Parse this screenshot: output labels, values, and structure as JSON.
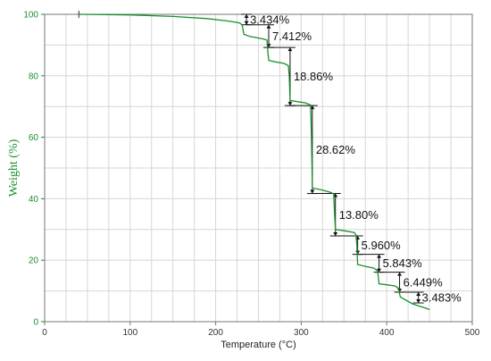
{
  "colors": {
    "curve": "#1a8f2e",
    "y_axis": "#1a8f2e",
    "annotation": "#111111",
    "grid": "#d6d6d6"
  },
  "chart_data": {
    "type": "line",
    "xlabel": "Temperature (°C)",
    "ylabel": "Weight (%)",
    "xlim": [
      0,
      500
    ],
    "ylim": [
      0,
      100
    ],
    "x_ticks": [
      "0",
      "100",
      "200",
      "300",
      "400",
      "500"
    ],
    "y_ticks": [
      "0",
      "20",
      "40",
      "60",
      "80",
      "100"
    ],
    "grid": true,
    "series": [
      {
        "x": [
          40,
          100,
          150,
          190,
          215,
          228,
          231,
          233,
          240,
          255,
          260,
          261,
          262,
          270,
          280,
          285,
          286,
          287,
          295,
          305,
          311,
          312,
          313,
          325,
          335,
          338,
          339,
          340,
          350,
          362,
          364,
          365,
          366,
          375,
          385,
          389,
          390,
          391,
          400,
          410,
          414,
          415,
          416,
          430,
          450
        ],
        "y": [
          100,
          99.8,
          99.3,
          98.6,
          97.8,
          97.2,
          96.5,
          93.5,
          92.8,
          92,
          91.6,
          88,
          85,
          84.5,
          84,
          83.3,
          80,
          72,
          71.6,
          71.2,
          70.5,
          60,
          43.5,
          42.8,
          42,
          41.5,
          35,
          30,
          29.6,
          29,
          28.3,
          25,
          18.6,
          18,
          17.4,
          16.6,
          15,
          12.3,
          12,
          11.6,
          10.8,
          9,
          8,
          5.8,
          4
        ]
      }
    ],
    "steps": [
      {
        "label": "3.434%",
        "x": 236,
        "y_top": 100,
        "y_bottom": 96.6
      },
      {
        "label": "7.412%",
        "x": 262,
        "y_top": 96.6,
        "y_bottom": 89.2
      },
      {
        "label": "18.86%",
        "x": 287,
        "y_top": 89.2,
        "y_bottom": 70.3
      },
      {
        "label": "28.62%",
        "x": 313,
        "y_top": 70.3,
        "y_bottom": 41.7
      },
      {
        "label": "13.80%",
        "x": 340,
        "y_top": 41.7,
        "y_bottom": 27.9
      },
      {
        "label": "5.960%",
        "x": 366,
        "y_top": 27.9,
        "y_bottom": 21.9
      },
      {
        "label": "5.843%",
        "x": 391,
        "y_top": 21.9,
        "y_bottom": 16.1
      },
      {
        "label": "6.449%",
        "x": 415,
        "y_top": 16.1,
        "y_bottom": 9.6
      },
      {
        "label": "3.483%",
        "x": 437,
        "y_top": 9.6,
        "y_bottom": 6.1
      }
    ]
  }
}
